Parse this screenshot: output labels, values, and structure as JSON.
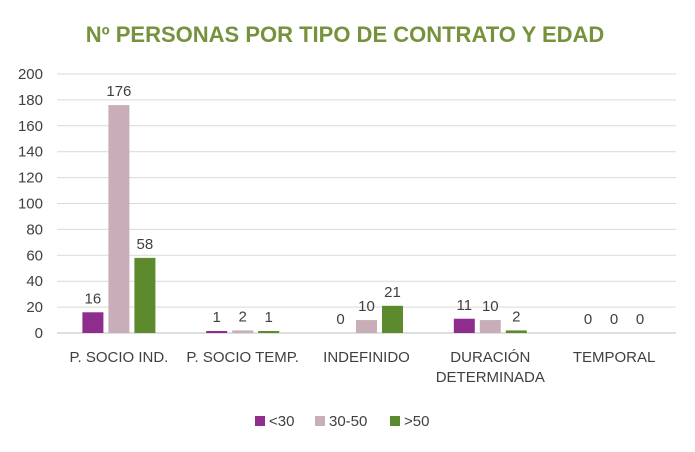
{
  "chart_data": {
    "type": "bar",
    "title": "Nº PERSONAS POR TIPO DE CONTRATO Y EDAD",
    "title_color": "#76923C",
    "categories": [
      [
        "P. SOCIO IND."
      ],
      [
        "P. SOCIO TEMP."
      ],
      [
        "INDEFINIDO"
      ],
      [
        "DURACIÓN",
        "DETERMINADA"
      ],
      [
        "TEMPORAL"
      ]
    ],
    "series": [
      {
        "name": "<30",
        "color": "#8E2D8C",
        "values": [
          16,
          1,
          0,
          11,
          0
        ]
      },
      {
        "name": "30-50",
        "color": "#C9AEB9",
        "values": [
          176,
          2,
          10,
          10,
          0
        ]
      },
      {
        "name": ">50",
        "color": "#5E8A2E",
        "values": [
          58,
          1,
          21,
          2,
          0
        ]
      }
    ],
    "ylim": [
      0,
      200
    ],
    "yticks": [
      0,
      20,
      40,
      60,
      80,
      100,
      120,
      140,
      160,
      180,
      200
    ],
    "grid": true,
    "legend_position": "bottom",
    "data_labels": true
  }
}
